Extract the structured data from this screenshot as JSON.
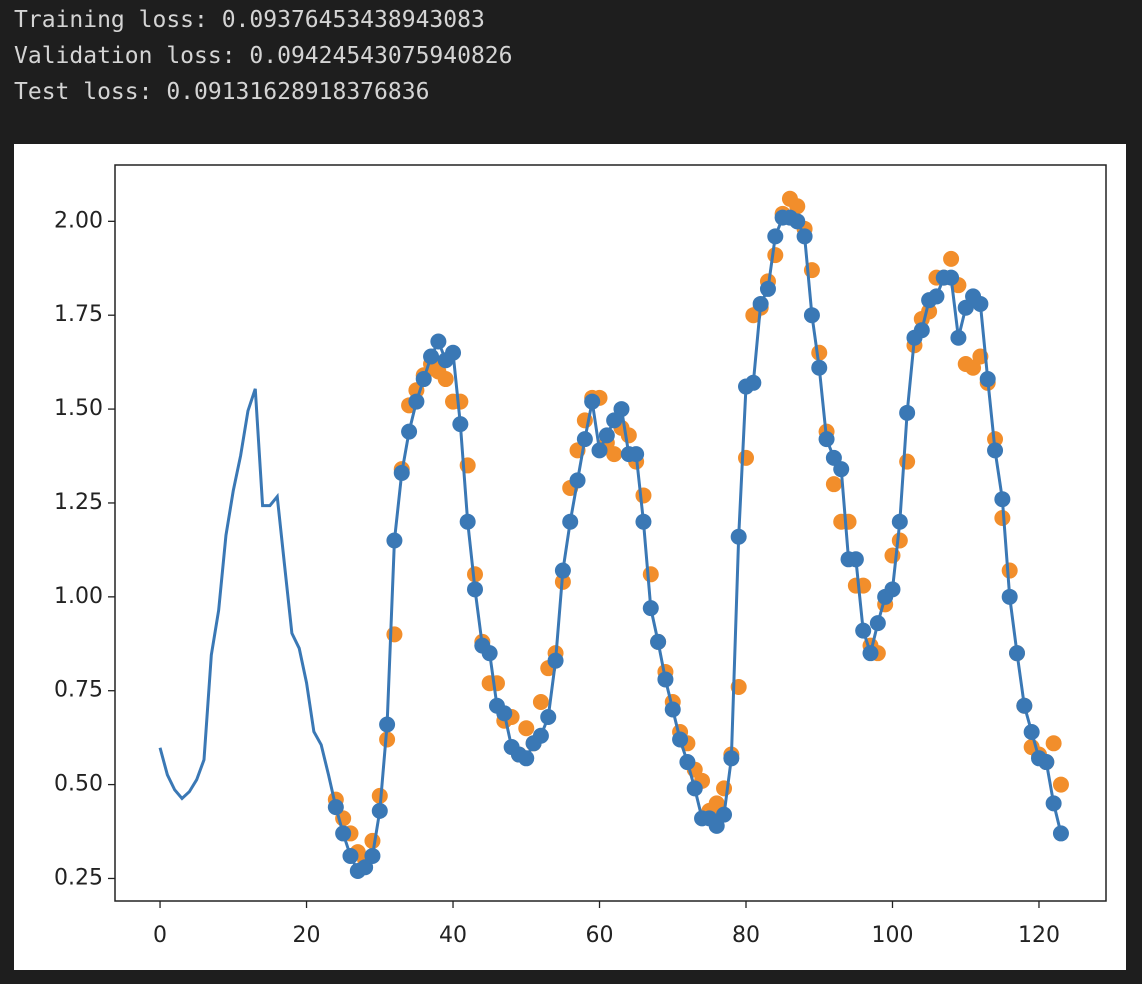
{
  "output": {
    "lines": [
      "Training loss: 0.09376453438943083",
      "Validation loss: 0.09424543075940826",
      "Test loss: 0.09131628918376836"
    ]
  },
  "chart_data": {
    "type": "line",
    "xlim": [
      -6.15,
      129.15
    ],
    "xticks": [
      0,
      20,
      40,
      60,
      80,
      100,
      120
    ],
    "ylim": [
      0.19,
      2.15
    ],
    "yticks": [
      {
        "value": 0.25,
        "label": "0.25"
      },
      {
        "value": 0.5,
        "label": "0.50"
      },
      {
        "value": 0.75,
        "label": "0.75"
      },
      {
        "value": 1,
        "label": "1.00"
      },
      {
        "value": 1.25,
        "label": "1.25"
      },
      {
        "value": 1.5,
        "label": "1.50"
      },
      {
        "value": 1.75,
        "label": "1.75"
      },
      {
        "value": 2,
        "label": "2.00"
      }
    ],
    "series": [
      {
        "type": "scatter",
        "color": "#f28e2b",
        "x": [
          24,
          25,
          26,
          27,
          28,
          29,
          30,
          31,
          32,
          33,
          34,
          35,
          36,
          37,
          38,
          39,
          40,
          41,
          42,
          43,
          44,
          45,
          46,
          47,
          48,
          49,
          50,
          51,
          52,
          53,
          54,
          55,
          56,
          57,
          58,
          59,
          60,
          61,
          62,
          63,
          64,
          65,
          66,
          67,
          68,
          69,
          70,
          71,
          72,
          73,
          74,
          75,
          76,
          77,
          78,
          79,
          80,
          81,
          82,
          83,
          84,
          85,
          86,
          87,
          88,
          89,
          90,
          91,
          92,
          93,
          94,
          95,
          96,
          97,
          98,
          99,
          100,
          101,
          102,
          103,
          104,
          105,
          106,
          107,
          108,
          109,
          110,
          111,
          112,
          113,
          114,
          115,
          116,
          117,
          118,
          119,
          120,
          121,
          122,
          123
        ],
        "values": [
          0.46,
          0.41,
          0.37,
          0.32,
          0.3,
          0.35,
          0.47,
          0.62,
          0.9,
          1.34,
          1.51,
          1.55,
          1.59,
          1.62,
          1.6,
          1.58,
          1.52,
          1.52,
          1.35,
          1.06,
          0.88,
          0.77,
          0.77,
          0.67,
          0.68,
          0.58,
          0.65,
          0.61,
          0.72,
          0.81,
          0.85,
          1.04,
          1.29,
          1.39,
          1.47,
          1.53,
          1.53,
          1.41,
          1.38,
          1.45,
          1.43,
          1.36,
          1.27,
          1.06,
          0.88,
          0.8,
          0.72,
          0.64,
          0.61,
          0.54,
          0.51,
          0.43,
          0.45,
          0.49,
          0.58,
          0.76,
          1.37,
          1.75,
          1.77,
          1.84,
          1.91,
          2.02,
          2.06,
          2.04,
          1.98,
          1.87,
          1.65,
          1.44,
          1.3,
          1.2,
          1.2,
          1.03,
          1.03,
          0.87,
          0.85,
          0.98,
          1.11,
          1.15,
          1.36,
          1.67,
          1.74,
          1.76,
          1.85,
          1.85,
          1.9,
          1.83,
          1.62,
          1.61,
          1.64,
          1.57,
          1.42,
          1.21,
          1.07,
          0.85,
          0.71,
          0.6,
          0.58,
          0.56,
          0.61,
          0.5
        ]
      },
      {
        "type": "line",
        "color": "#3a78b5",
        "x": [
          0,
          1,
          2,
          3,
          4,
          5,
          6,
          7,
          8,
          9,
          10,
          11,
          12,
          13,
          14,
          15,
          16,
          17,
          18,
          19,
          20,
          21,
          22,
          23,
          24,
          25,
          26,
          27,
          28,
          29,
          30,
          31,
          32,
          33,
          34,
          35,
          36,
          37,
          38,
          39,
          40,
          41,
          42,
          43,
          44,
          45,
          46,
          47,
          48,
          49,
          50,
          51,
          52,
          53,
          54,
          55,
          56,
          57,
          58,
          59,
          60,
          61,
          62,
          63,
          64,
          65,
          66,
          67,
          68,
          69,
          70,
          71,
          72,
          73,
          74,
          75,
          76,
          77,
          78,
          79,
          80,
          81,
          82,
          83,
          84,
          85,
          86,
          87,
          88,
          89,
          90,
          91,
          92,
          93,
          94,
          95,
          96,
          97,
          98,
          99,
          100,
          101,
          102,
          103,
          104,
          105,
          106,
          107,
          108,
          109,
          110,
          111,
          112,
          113,
          114,
          115,
          116,
          117,
          118,
          119,
          120,
          121,
          122,
          123
        ],
        "values": [
          0.598,
          0.526,
          0.486,
          0.463,
          0.481,
          0.513,
          0.566,
          0.845,
          0.964,
          1.164,
          1.283,
          1.376,
          1.495,
          1.554,
          1.243,
          1.243,
          1.267,
          1.084,
          0.903,
          0.863,
          0.771,
          0.641,
          0.606,
          0.526,
          0.44,
          0.37,
          0.31,
          0.27,
          0.28,
          0.31,
          0.43,
          0.66,
          1.15,
          1.33,
          1.44,
          1.52,
          1.58,
          1.64,
          1.68,
          1.63,
          1.65,
          1.46,
          1.2,
          1.02,
          0.87,
          0.85,
          0.71,
          0.69,
          0.6,
          0.58,
          0.57,
          0.61,
          0.63,
          0.68,
          0.83,
          1.07,
          1.2,
          1.31,
          1.42,
          1.52,
          1.39,
          1.43,
          1.47,
          1.5,
          1.38,
          1.38,
          1.2,
          0.97,
          0.88,
          0.78,
          0.7,
          0.62,
          0.56,
          0.49,
          0.41,
          0.41,
          0.39,
          0.42,
          0.57,
          1.16,
          1.56,
          1.57,
          1.78,
          1.82,
          1.96,
          2.01,
          2.01,
          2.0,
          1.96,
          1.75,
          1.61,
          1.42,
          1.37,
          1.34,
          1.1,
          1.1,
          0.91,
          0.85,
          0.93,
          1.0,
          1.02,
          1.2,
          1.49,
          1.69,
          1.71,
          1.79,
          1.8,
          1.85,
          1.85,
          1.69,
          1.77,
          1.8,
          1.78,
          1.58,
          1.39,
          1.26,
          1.0,
          0.85,
          0.71,
          0.64,
          0.57,
          0.56,
          0.45,
          0.37
        ]
      },
      {
        "type": "scatter",
        "color": "#3a78b5",
        "x": [
          24,
          25,
          26,
          27,
          28,
          29,
          30,
          31,
          32,
          33,
          34,
          35,
          36,
          37,
          38,
          39,
          40,
          41,
          42,
          43,
          44,
          45,
          46,
          47,
          48,
          49,
          50,
          51,
          52,
          53,
          54,
          55,
          56,
          57,
          58,
          59,
          60,
          61,
          62,
          63,
          64,
          65,
          66,
          67,
          68,
          69,
          70,
          71,
          72,
          73,
          74,
          75,
          76,
          77,
          78,
          79,
          80,
          81,
          82,
          83,
          84,
          85,
          86,
          87,
          88,
          89,
          90,
          91,
          92,
          93,
          94,
          95,
          96,
          97,
          98,
          99,
          100,
          101,
          102,
          103,
          104,
          105,
          106,
          107,
          108,
          109,
          110,
          111,
          112,
          113,
          114,
          115,
          116,
          117,
          118,
          119,
          120,
          121,
          122,
          123
        ],
        "values": [
          0.44,
          0.37,
          0.31,
          0.27,
          0.28,
          0.31,
          0.43,
          0.66,
          1.15,
          1.33,
          1.44,
          1.52,
          1.58,
          1.64,
          1.68,
          1.63,
          1.65,
          1.46,
          1.2,
          1.02,
          0.87,
          0.85,
          0.71,
          0.69,
          0.6,
          0.58,
          0.57,
          0.61,
          0.63,
          0.68,
          0.83,
          1.07,
          1.2,
          1.31,
          1.42,
          1.52,
          1.39,
          1.43,
          1.47,
          1.5,
          1.38,
          1.38,
          1.2,
          0.97,
          0.88,
          0.78,
          0.7,
          0.62,
          0.56,
          0.49,
          0.41,
          0.41,
          0.39,
          0.42,
          0.57,
          1.16,
          1.56,
          1.57,
          1.78,
          1.82,
          1.96,
          2.01,
          2.01,
          2.0,
          1.96,
          1.75,
          1.61,
          1.42,
          1.37,
          1.34,
          1.1,
          1.1,
          0.91,
          0.85,
          0.93,
          1.0,
          1.02,
          1.2,
          1.49,
          1.69,
          1.71,
          1.79,
          1.8,
          1.85,
          1.85,
          1.69,
          1.77,
          1.8,
          1.78,
          1.58,
          1.39,
          1.26,
          1.0,
          0.85,
          0.71,
          0.64,
          0.57,
          0.56,
          0.45,
          0.37
        ]
      }
    ]
  }
}
